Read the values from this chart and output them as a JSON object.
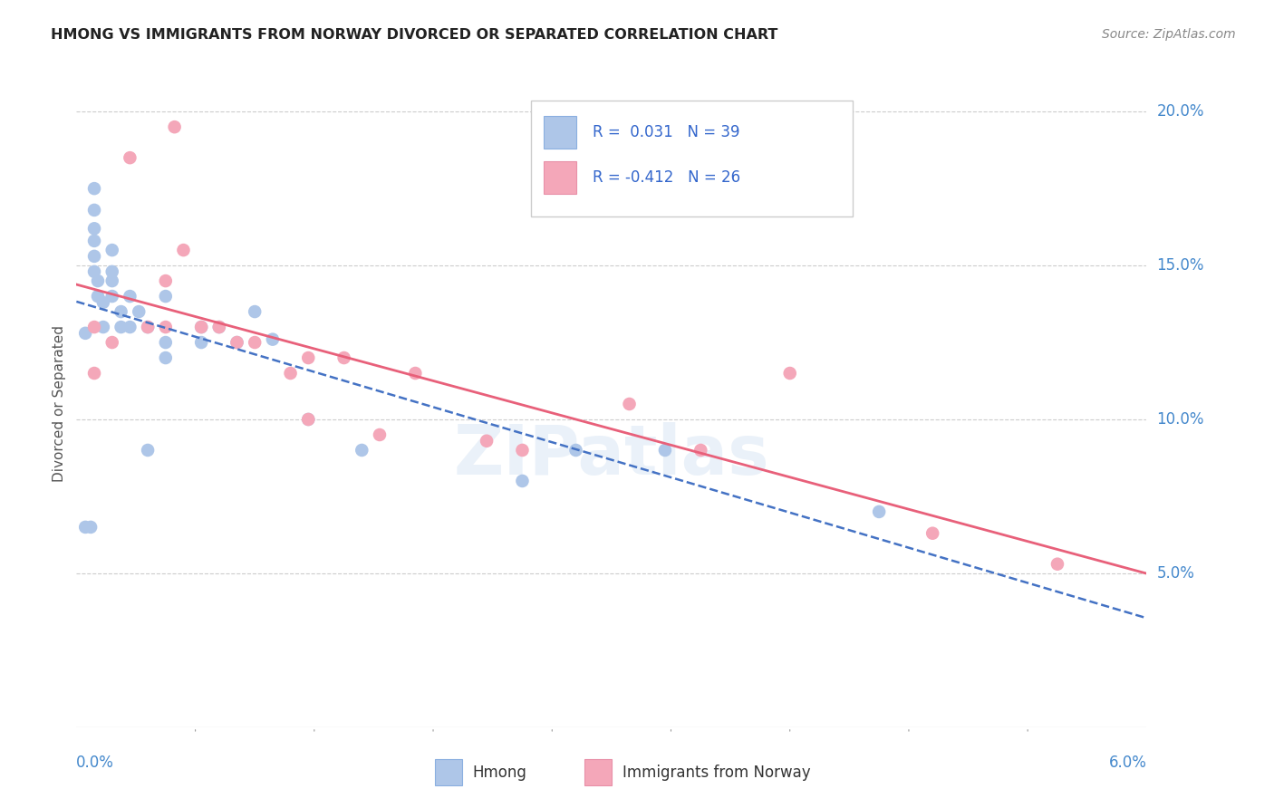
{
  "title": "HMONG VS IMMIGRANTS FROM NORWAY DIVORCED OR SEPARATED CORRELATION CHART",
  "source": "Source: ZipAtlas.com",
  "ylabel": "Divorced or Separated",
  "xlim": [
    0.0,
    0.06
  ],
  "ylim": [
    0.0,
    0.21
  ],
  "ytick_vals": [
    0.05,
    0.1,
    0.15,
    0.2
  ],
  "ytick_labels": [
    "5.0%",
    "10.0%",
    "15.0%",
    "20.0%"
  ],
  "watermark": "ZIPatlas",
  "hmong_color": "#aec6e8",
  "norway_color": "#f4a7b9",
  "hmong_line_color": "#4472c4",
  "norway_line_color": "#e8607a",
  "legend_text_color": "#3366cc",
  "hmong_x": [
    0.0005,
    0.0005,
    0.0008,
    0.001,
    0.001,
    0.001,
    0.001,
    0.001,
    0.001,
    0.0012,
    0.0012,
    0.0015,
    0.0015,
    0.002,
    0.002,
    0.002,
    0.002,
    0.0025,
    0.0025,
    0.003,
    0.003,
    0.0035,
    0.004,
    0.004,
    0.005,
    0.005,
    0.005,
    0.007,
    0.007,
    0.008,
    0.009,
    0.01,
    0.011,
    0.013,
    0.016,
    0.025,
    0.028,
    0.033,
    0.045
  ],
  "hmong_y": [
    0.128,
    0.065,
    0.065,
    0.175,
    0.168,
    0.162,
    0.158,
    0.153,
    0.148,
    0.145,
    0.14,
    0.138,
    0.13,
    0.155,
    0.148,
    0.145,
    0.14,
    0.135,
    0.13,
    0.14,
    0.13,
    0.135,
    0.13,
    0.09,
    0.14,
    0.125,
    0.12,
    0.13,
    0.125,
    0.13,
    0.125,
    0.135,
    0.126,
    0.1,
    0.09,
    0.08,
    0.09,
    0.09,
    0.07
  ],
  "norway_x": [
    0.001,
    0.001,
    0.002,
    0.003,
    0.004,
    0.005,
    0.005,
    0.0055,
    0.006,
    0.007,
    0.008,
    0.009,
    0.01,
    0.012,
    0.013,
    0.013,
    0.015,
    0.017,
    0.019,
    0.023,
    0.025,
    0.031,
    0.035,
    0.04,
    0.048,
    0.055
  ],
  "norway_y": [
    0.13,
    0.115,
    0.125,
    0.185,
    0.13,
    0.145,
    0.13,
    0.195,
    0.155,
    0.13,
    0.13,
    0.125,
    0.125,
    0.115,
    0.12,
    0.1,
    0.12,
    0.095,
    0.115,
    0.093,
    0.09,
    0.105,
    0.09,
    0.115,
    0.063,
    0.053
  ]
}
